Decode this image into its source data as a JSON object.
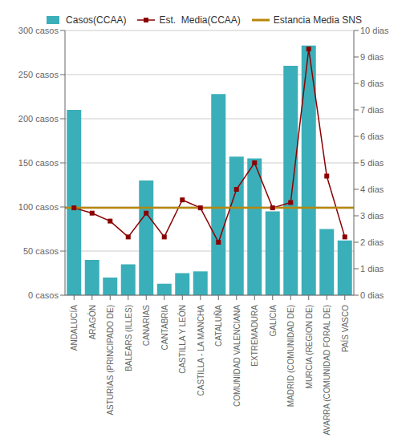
{
  "chart_data": {
    "type": "bar",
    "categories": [
      "ANDALUCÍA",
      "ARAGÓN",
      "ASTURIAS (PRINCIPADO DE)",
      "BALEARS (ILLES)",
      "CANARIAS",
      "CANTABRIA",
      "CASTILLA Y LEÓN",
      "CASTILLA - LA MANCHA",
      "CATALUÑA",
      "COMUNIDAD VALENCIANA",
      "EXTREMADURA",
      "GALICIA",
      "MADRID (COMUNIDAD DE)",
      "MURCIA (REGION DE)",
      "NAVARRA (COMUNIDAD FORAL DE)",
      "PAÍS VASCO"
    ],
    "series": [
      {
        "name": "Casos(CCAA)",
        "type": "bar",
        "color": "#3aafb9",
        "values": [
          210,
          40,
          20,
          35,
          130,
          13,
          25,
          27,
          228,
          157,
          155,
          95,
          260,
          283,
          75,
          62
        ]
      },
      {
        "name": "Est.  Media(CCAA)",
        "type": "line",
        "axis": "y2",
        "color": "#8b0000",
        "marker": "square",
        "values": [
          3.3,
          3.1,
          2.8,
          2.2,
          3.1,
          2.2,
          3.6,
          3.3,
          2.0,
          4.0,
          5.0,
          3.3,
          3.5,
          9.3,
          4.5,
          2.2
        ]
      },
      {
        "name": "Estancia Media SNS",
        "type": "hline",
        "axis": "y2",
        "color": "#b8860b",
        "value": 3.3
      }
    ],
    "ylim": [
      0,
      300
    ],
    "yticks": [
      {
        "value": 0,
        "label": "0 casos"
      },
      {
        "value": 50,
        "label": "50 casos"
      },
      {
        "value": 100,
        "label": "100 casos"
      },
      {
        "value": 150,
        "label": "150 casos"
      },
      {
        "value": 200,
        "label": "200 casos"
      },
      {
        "value": 250,
        "label": "250 casos"
      },
      {
        "value": 300,
        "label": "300 casos"
      }
    ],
    "y2lim": [
      0,
      10
    ],
    "y2ticks": [
      {
        "value": 0,
        "label": "0 dias"
      },
      {
        "value": 1,
        "label": "1 dias"
      },
      {
        "value": 2,
        "label": "2 dias"
      },
      {
        "value": 3,
        "label": "3 dias"
      },
      {
        "value": 4,
        "label": "4 dias"
      },
      {
        "value": 5,
        "label": "5 dias"
      },
      {
        "value": 6,
        "label": "6 dias"
      },
      {
        "value": 7,
        "label": "7 dias"
      },
      {
        "value": 8,
        "label": "8 dias"
      },
      {
        "value": 9,
        "label": "9 dias"
      },
      {
        "value": 10,
        "label": "10 dias"
      }
    ],
    "grid": true,
    "legend": "top"
  }
}
